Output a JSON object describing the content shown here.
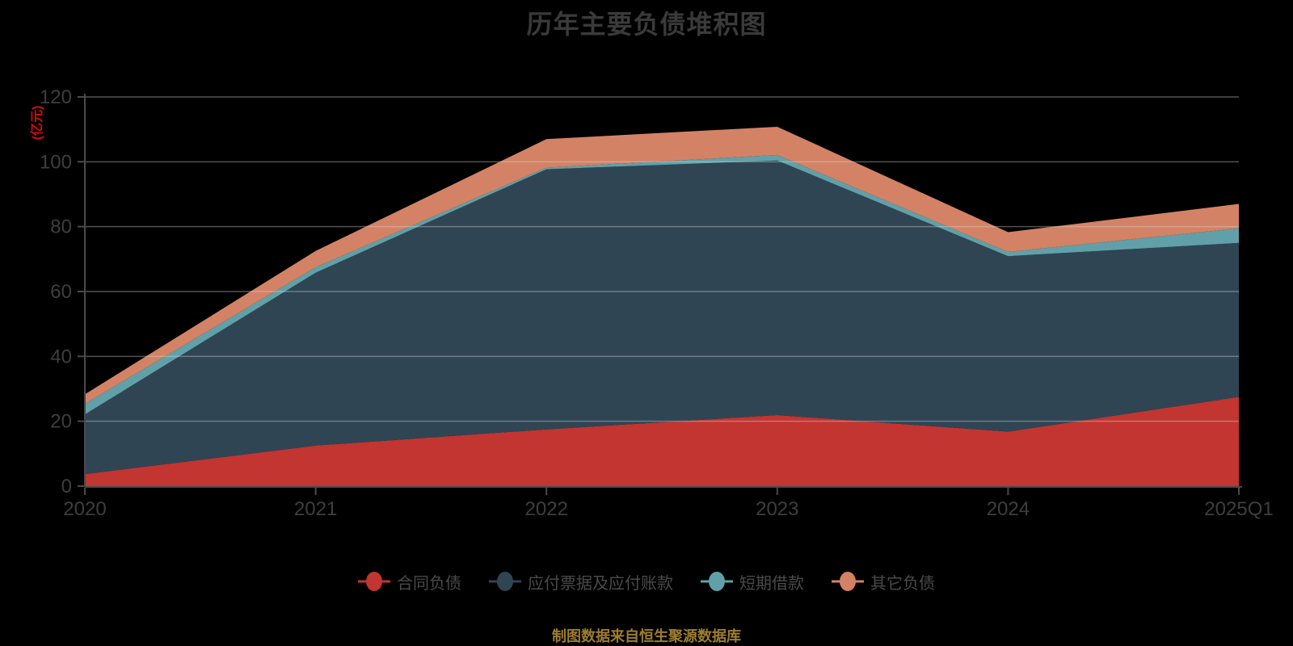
{
  "title": "历年主要负债堆积图",
  "y_axis_name": "(亿元)",
  "footer": "制图数据来自恒生聚源数据库",
  "colors": {
    "background": "#000000",
    "title_text": "#3a3a3a",
    "axis_label_text": "#3e3e3e",
    "axis_line": "#4a4a4a",
    "gridline": "rgba(215,215,215,0.38)",
    "y_axis_name_text": "#cf0d0d",
    "legend_text": "#4a4a4a",
    "footer_text": "#9d7d2e"
  },
  "chart_data": {
    "type": "area",
    "stacked": true,
    "title": "历年主要负债堆积图",
    "ylabel": "(亿元)",
    "x": [
      "2020",
      "2021",
      "2022",
      "2023",
      "2024",
      "2025Q1"
    ],
    "series": [
      {
        "name": "合同负债",
        "color": "#c23531",
        "values": [
          3.7,
          12.5,
          17.5,
          21.9,
          16.8,
          27.5
        ]
      },
      {
        "name": "应付票据及应付账款",
        "color": "#2f4554",
        "values": [
          18.4,
          53.3,
          80.2,
          78.5,
          54.1,
          47.5
        ]
      },
      {
        "name": "短期借款",
        "color": "#61a0a8",
        "values": [
          3.3,
          1.7,
          0.5,
          1.7,
          1.3,
          4.5
        ]
      },
      {
        "name": "其它负债",
        "color": "#d48265",
        "values": [
          2.9,
          5.0,
          8.8,
          8.7,
          6.1,
          7.5
        ]
      }
    ],
    "stack_totals": [
      28.3,
      72.5,
      107.0,
      110.8,
      78.3,
      87.0
    ],
    "ylim": [
      0,
      120
    ],
    "y_ticks": [
      0,
      20,
      40,
      60,
      80,
      100,
      120
    ],
    "grid": true,
    "legend_position": "bottom"
  }
}
